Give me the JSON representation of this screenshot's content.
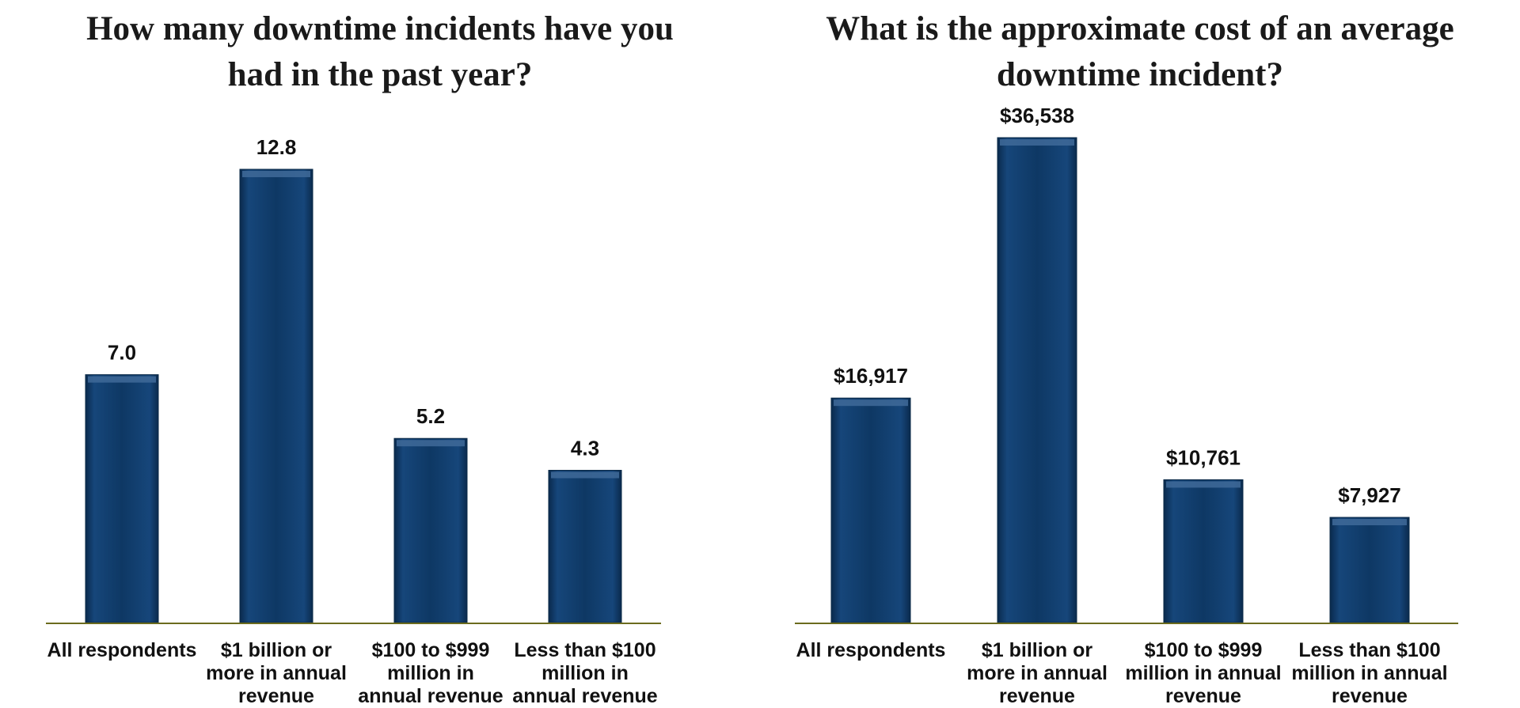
{
  "chart_data": [
    {
      "type": "bar",
      "title": "How many downtime incidents have you\nhad in the past year?",
      "categories": [
        "All respondents",
        "$1 billion or\nmore in annual\nrevenue",
        "$100 to $999\nmillion in\nannual revenue",
        "Less than $100\nmillion in\nannual revenue"
      ],
      "values": [
        7.0,
        12.8,
        5.2,
        4.3
      ],
      "value_labels": [
        "7.0",
        "12.8",
        "5.2",
        "4.3"
      ],
      "xlabel": "",
      "ylabel": "",
      "ylim": [
        0,
        12.8
      ],
      "grid": false,
      "legend": "none",
      "color": "#0d3560",
      "axis_color": "#6b6b1e"
    },
    {
      "type": "bar",
      "title": "What is the approximate cost of an average\ndowntime incident?",
      "categories": [
        "All respondents",
        "$1 billion or\nmore in annual\nrevenue",
        "$100 to $999\nmillion in annual\nrevenue",
        "Less than $100\nmillion in annual\nrevenue"
      ],
      "values": [
        16917,
        36538,
        10761,
        7927
      ],
      "value_labels": [
        "$16,917",
        "$36,538",
        "$10,761",
        "$7,927"
      ],
      "xlabel": "",
      "ylabel": "",
      "ylim": [
        0,
        36538
      ],
      "grid": false,
      "legend": "none",
      "color": "#0d3560",
      "axis_color": "#6b6b1e"
    }
  ]
}
